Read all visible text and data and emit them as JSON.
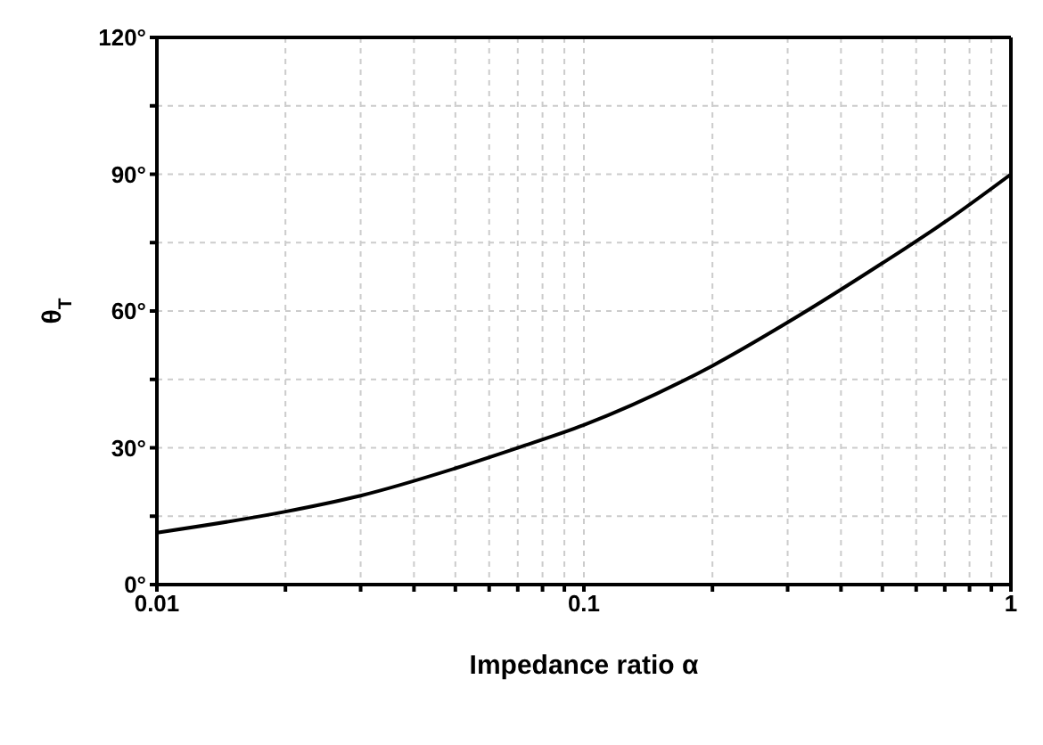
{
  "chart_data": {
    "type": "line",
    "xlabel": "Impedance ratio α",
    "ylabel": "θ$_{T}$",
    "log": "x",
    "x": [
      0.01,
      0.02,
      0.03,
      0.05,
      0.07,
      0.1,
      0.2,
      0.3,
      0.5,
      0.7,
      1
    ],
    "series": [
      {
        "color": "#000000",
        "values": [
          11.4,
          16,
          19.5,
          25.5,
          30,
          35,
          48,
          57.5,
          70.5,
          79.5,
          90
        ]
      }
    ],
    "xlim": [
      0.01,
      1
    ],
    "xticks": [
      0.01,
      {
        "value": 0.02,
        "label": null
      },
      {
        "value": 0.03,
        "label": null
      },
      {
        "value": 0.04,
        "label": null
      },
      {
        "value": 0.05,
        "label": null
      },
      {
        "value": 0.06,
        "label": null
      },
      {
        "value": 0.07,
        "label": null
      },
      {
        "value": 0.08,
        "label": null
      },
      {
        "value": 0.09,
        "label": null
      },
      0.1,
      {
        "value": 0.2,
        "label": null
      },
      {
        "value": 0.3,
        "label": null
      },
      {
        "value": 0.4,
        "label": null
      },
      {
        "value": 0.5,
        "label": null
      },
      {
        "value": 0.6,
        "label": null
      },
      {
        "value": 0.7,
        "label": null
      },
      {
        "value": 0.8,
        "label": null
      },
      {
        "value": 0.9,
        "label": null
      },
      1
    ],
    "ylim": [
      0,
      120
    ],
    "yticks": [
      {
        "value": 0,
        "label": "0°"
      },
      {
        "value": 15,
        "label": null
      },
      {
        "value": 30,
        "label": "30°"
      },
      {
        "value": 45,
        "label": null
      },
      {
        "value": 60,
        "label": "60°"
      },
      {
        "value": 75,
        "label": null
      },
      {
        "value": 90,
        "label": "90°"
      },
      {
        "value": 105,
        "label": null
      },
      {
        "value": 120,
        "label": "120°"
      }
    ],
    "grid": true,
    "marker": "none",
    "line_style": "solid"
  }
}
